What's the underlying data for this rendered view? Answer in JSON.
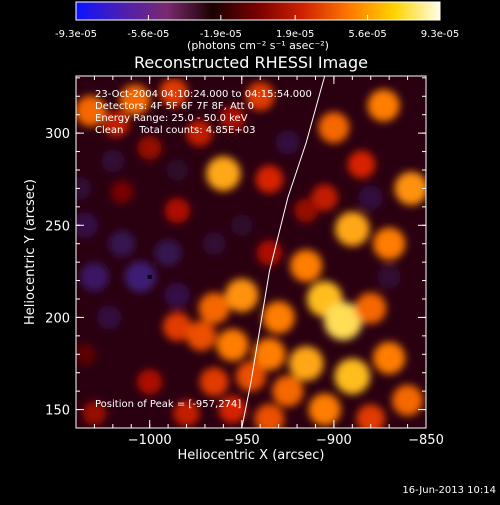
{
  "colorbar": {
    "tick_labels": [
      "-9.3e-05",
      "-5.6e-05",
      "-1.9e-05",
      "1.9e-05",
      "5.6e-05",
      "9.3e-05"
    ],
    "tick_values": [
      -9.3e-05,
      -5.6e-05,
      -1.9e-05,
      1.9e-05,
      5.6e-05,
      9.3e-05
    ],
    "unit_label": "(photons cm⁻² s⁻¹ asec⁻²)",
    "range": [
      -9.3e-05,
      9.3e-05
    ],
    "gradient_colors": [
      "#0a14ff",
      "#4b1eb4",
      "#7a2a6e",
      "#1a0000",
      "#7a0000",
      "#d02200",
      "#ff7800",
      "#ffd300",
      "#ffffe8"
    ]
  },
  "chart_data": {
    "type": "heatmap",
    "title": "Reconstructed RHESSI Image",
    "xlabel": "Heliocentric X (arcsec)",
    "ylabel": "Heliocentric Y (arcsec)",
    "xlim": [
      -1040,
      -850
    ],
    "ylim": [
      140,
      331
    ],
    "x_ticks": [
      -1000,
      -950,
      -900,
      -850
    ],
    "x_tick_labels": [
      "−1000",
      "−950",
      "−900",
      "−850"
    ],
    "y_ticks": [
      150,
      200,
      250,
      300
    ],
    "y_tick_labels": [
      "150",
      "200",
      "250",
      "300"
    ],
    "annotations": [
      "23-Oct-2004 04:10:24.000 to 04:15:54.000",
      "Detectors: 4F 5F 6F 7F 8F, Att 0",
      "Energy Range: 25.0 - 50.0 keV",
      "Clean     Total counts: 4.85E+03"
    ],
    "peak_label": "Position of Peak = [-957,274]",
    "peak_position": [
      -957,
      274
    ],
    "marker_position": [
      -1000,
      222
    ],
    "limb_arc": [
      [
        -950,
        140
      ],
      [
        -945,
        165
      ],
      [
        -940,
        195
      ],
      [
        -935,
        225
      ],
      [
        -925,
        265
      ],
      [
        -915,
        295
      ],
      [
        -905,
        331
      ]
    ],
    "blobs": [
      {
        "x": -1032,
        "y": 312,
        "v": 0.55
      },
      {
        "x": -1018,
        "y": 305,
        "v": 0.35
      },
      {
        "x": -1008,
        "y": 318,
        "v": 0.55
      },
      {
        "x": -987,
        "y": 322,
        "v": 0.45
      },
      {
        "x": -1000,
        "y": 292,
        "v": 0.25
      },
      {
        "x": -973,
        "y": 300,
        "v": 0.35
      },
      {
        "x": -955,
        "y": 308,
        "v": 0.3
      },
      {
        "x": -940,
        "y": 320,
        "v": 0.45
      },
      {
        "x": -960,
        "y": 278,
        "v": 0.7
      },
      {
        "x": -1015,
        "y": 268,
        "v": 0.18
      },
      {
        "x": -985,
        "y": 258,
        "v": 0.3
      },
      {
        "x": -935,
        "y": 275,
        "v": 0.4
      },
      {
        "x": -900,
        "y": 303,
        "v": 0.55
      },
      {
        "x": -873,
        "y": 315,
        "v": 0.6
      },
      {
        "x": -858,
        "y": 270,
        "v": 0.65
      },
      {
        "x": -885,
        "y": 283,
        "v": 0.4
      },
      {
        "x": -905,
        "y": 265,
        "v": 0.35
      },
      {
        "x": -890,
        "y": 248,
        "v": 0.7
      },
      {
        "x": -870,
        "y": 240,
        "v": 0.6
      },
      {
        "x": -915,
        "y": 228,
        "v": 0.6
      },
      {
        "x": -905,
        "y": 210,
        "v": 0.75
      },
      {
        "x": -895,
        "y": 198,
        "v": 0.85
      },
      {
        "x": -880,
        "y": 205,
        "v": 0.55
      },
      {
        "x": -930,
        "y": 200,
        "v": 0.6
      },
      {
        "x": -950,
        "y": 212,
        "v": 0.65
      },
      {
        "x": -965,
        "y": 205,
        "v": 0.55
      },
      {
        "x": -985,
        "y": 195,
        "v": 0.45
      },
      {
        "x": -972,
        "y": 190,
        "v": 0.5
      },
      {
        "x": -955,
        "y": 185,
        "v": 0.6
      },
      {
        "x": -935,
        "y": 180,
        "v": 0.6
      },
      {
        "x": -915,
        "y": 175,
        "v": 0.7
      },
      {
        "x": -890,
        "y": 168,
        "v": 0.75
      },
      {
        "x": -870,
        "y": 178,
        "v": 0.6
      },
      {
        "x": -860,
        "y": 155,
        "v": 0.55
      },
      {
        "x": -905,
        "y": 150,
        "v": 0.6
      },
      {
        "x": -925,
        "y": 160,
        "v": 0.55
      },
      {
        "x": -945,
        "y": 168,
        "v": 0.5
      },
      {
        "x": -965,
        "y": 165,
        "v": 0.45
      },
      {
        "x": -980,
        "y": 148,
        "v": 0.35
      },
      {
        "x": -955,
        "y": 150,
        "v": 0.4
      },
      {
        "x": -935,
        "y": 145,
        "v": 0.5
      },
      {
        "x": -880,
        "y": 145,
        "v": 0.45
      },
      {
        "x": -1030,
        "y": 148,
        "v": 0.25
      },
      {
        "x": -1000,
        "y": 165,
        "v": 0.3
      },
      {
        "x": -1035,
        "y": 180,
        "v": 0.12
      },
      {
        "x": -935,
        "y": 235,
        "v": 0.3
      },
      {
        "x": -915,
        "y": 258,
        "v": 0.25
      },
      {
        "x": -1030,
        "y": 222,
        "v": -0.45
      },
      {
        "x": -1005,
        "y": 222,
        "v": -0.55
      },
      {
        "x": -1015,
        "y": 240,
        "v": -0.35
      },
      {
        "x": -990,
        "y": 235,
        "v": -0.35
      },
      {
        "x": -1035,
        "y": 250,
        "v": -0.3
      },
      {
        "x": -985,
        "y": 212,
        "v": -0.3
      },
      {
        "x": -1022,
        "y": 200,
        "v": -0.25
      },
      {
        "x": -965,
        "y": 240,
        "v": -0.2
      },
      {
        "x": -950,
        "y": 250,
        "v": -0.15
      },
      {
        "x": -925,
        "y": 295,
        "v": -0.25
      },
      {
        "x": -880,
        "y": 265,
        "v": -0.25
      },
      {
        "x": -1020,
        "y": 285,
        "v": -0.2
      },
      {
        "x": -985,
        "y": 280,
        "v": -0.15
      },
      {
        "x": -870,
        "y": 222,
        "v": -0.2
      },
      {
        "x": -1038,
        "y": 270,
        "v": -0.2
      }
    ]
  },
  "footer": {
    "timestamp": "16-Jun-2013 10:14"
  }
}
